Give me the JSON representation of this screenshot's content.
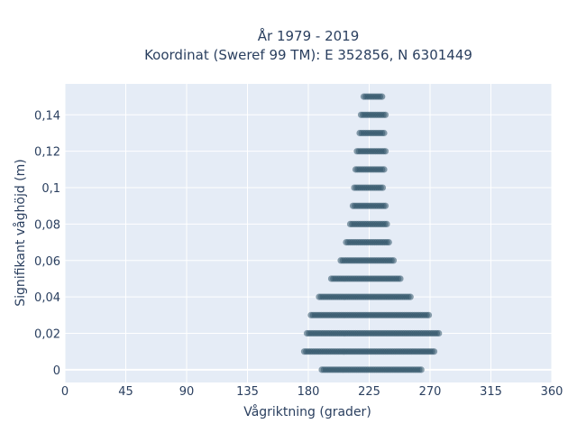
{
  "chart_data": {
    "type": "scatter",
    "title_line1": "År 1979 - 2019",
    "title_line2": "Koordinat (Sweref 99 TM): E 352856, N 6301449",
    "xlabel": "Vågriktning (grader)",
    "ylabel": "Signifikant våghöjd (m)",
    "xlim": [
      0,
      360
    ],
    "ylim": [
      -0.007,
      0.157
    ],
    "xticks": [
      0,
      45,
      90,
      135,
      180,
      225,
      270,
      315,
      360
    ],
    "xtick_labels": [
      "0",
      "45",
      "90",
      "135",
      "180",
      "225",
      "270",
      "315",
      "360"
    ],
    "yticks": [
      0,
      0.02,
      0.04,
      0.06,
      0.08,
      0.1,
      0.12,
      0.14
    ],
    "ytick_labels": [
      "0",
      "0,02",
      "0,04",
      "0,06",
      "0,08",
      "0,1",
      "0,12",
      "0,14"
    ],
    "grid": true,
    "marker_color": "#2f5468",
    "background_color": "#e5ecf6",
    "series": [
      {
        "values": [
          {
            "y": 0.0,
            "x_min": 190,
            "x_max": 264
          },
          {
            "y": 0.01,
            "x_min": 177,
            "x_max": 274
          },
          {
            "y": 0.02,
            "x_min": 179,
            "x_max": 277
          },
          {
            "y": 0.03,
            "x_min": 182,
            "x_max": 269
          },
          {
            "y": 0.04,
            "x_min": 188,
            "x_max": 256
          },
          {
            "y": 0.05,
            "x_min": 197,
            "x_max": 249
          },
          {
            "y": 0.06,
            "x_min": 204,
            "x_max": 243
          },
          {
            "y": 0.07,
            "x_min": 208,
            "x_max": 240
          },
          {
            "y": 0.08,
            "x_min": 211,
            "x_max": 238
          },
          {
            "y": 0.09,
            "x_min": 213,
            "x_max": 237
          },
          {
            "y": 0.1,
            "x_min": 214,
            "x_max": 236
          },
          {
            "y": 0.11,
            "x_min": 215,
            "x_max": 236
          },
          {
            "y": 0.12,
            "x_min": 216,
            "x_max": 237
          },
          {
            "y": 0.13,
            "x_min": 218,
            "x_max": 237
          },
          {
            "y": 0.14,
            "x_min": 219,
            "x_max": 237
          },
          {
            "y": 0.15,
            "x_min": 221,
            "x_max": 235
          }
        ]
      }
    ]
  }
}
